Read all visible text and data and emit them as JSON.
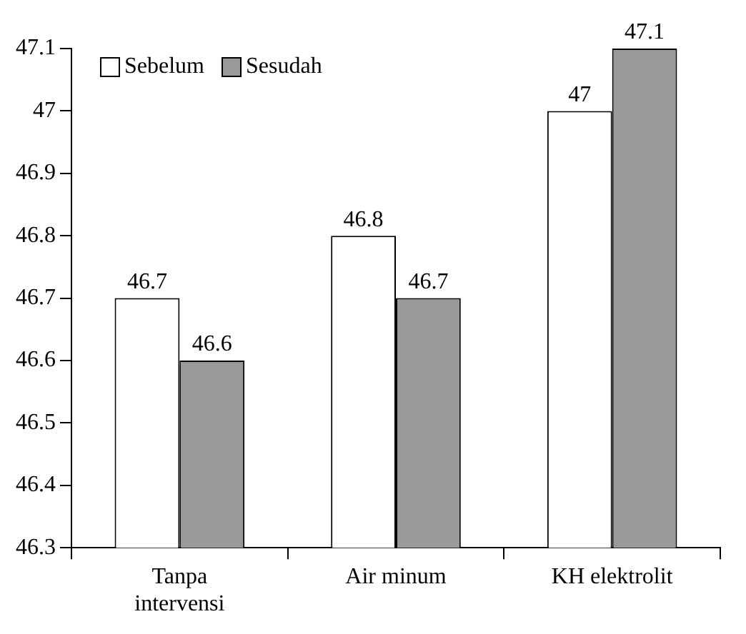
{
  "chart_data": {
    "type": "bar",
    "categories": [
      "Tanpa intervensi",
      "Air minum",
      "KH elektrolit"
    ],
    "series": [
      {
        "name": "Sebelum",
        "color": "#ffffff",
        "values": [
          46.7,
          46.8,
          47
        ]
      },
      {
        "name": "Sesudah",
        "color": "#999999",
        "values": [
          46.6,
          46.7,
          47.1
        ]
      }
    ],
    "ylim": [
      46.3,
      47.1
    ],
    "yticks": [
      46.3,
      46.4,
      46.5,
      46.6,
      46.7,
      46.8,
      46.9,
      47,
      47.1
    ],
    "data_labels": true,
    "legend": "top left"
  }
}
